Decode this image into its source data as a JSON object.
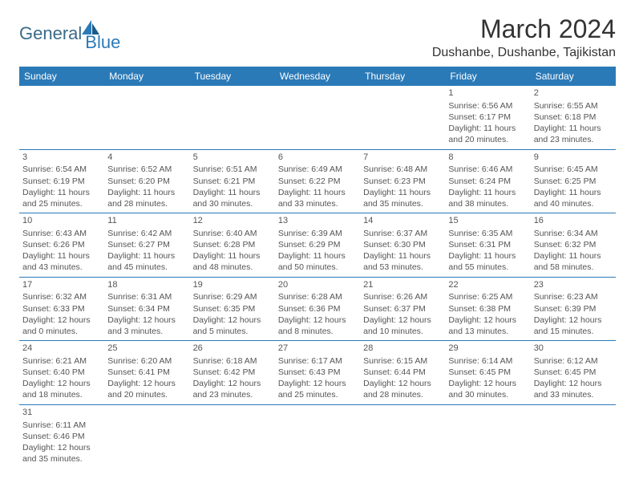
{
  "logo": {
    "text1": "General",
    "text2": "Blue"
  },
  "title": "March 2024",
  "location": "Dushanbe, Dushanbe, Tajikistan",
  "dayHeaders": [
    "Sunday",
    "Monday",
    "Tuesday",
    "Wednesday",
    "Thursday",
    "Friday",
    "Saturday"
  ],
  "colors": {
    "headerBg": "#2b7ab8",
    "headerText": "#ffffff",
    "text": "#555555",
    "titleText": "#333333"
  },
  "weeks": [
    [
      null,
      null,
      null,
      null,
      null,
      {
        "n": "1",
        "sunrise": "Sunrise: 6:56 AM",
        "sunset": "Sunset: 6:17 PM",
        "d1": "Daylight: 11 hours",
        "d2": "and 20 minutes."
      },
      {
        "n": "2",
        "sunrise": "Sunrise: 6:55 AM",
        "sunset": "Sunset: 6:18 PM",
        "d1": "Daylight: 11 hours",
        "d2": "and 23 minutes."
      }
    ],
    [
      {
        "n": "3",
        "sunrise": "Sunrise: 6:54 AM",
        "sunset": "Sunset: 6:19 PM",
        "d1": "Daylight: 11 hours",
        "d2": "and 25 minutes."
      },
      {
        "n": "4",
        "sunrise": "Sunrise: 6:52 AM",
        "sunset": "Sunset: 6:20 PM",
        "d1": "Daylight: 11 hours",
        "d2": "and 28 minutes."
      },
      {
        "n": "5",
        "sunrise": "Sunrise: 6:51 AM",
        "sunset": "Sunset: 6:21 PM",
        "d1": "Daylight: 11 hours",
        "d2": "and 30 minutes."
      },
      {
        "n": "6",
        "sunrise": "Sunrise: 6:49 AM",
        "sunset": "Sunset: 6:22 PM",
        "d1": "Daylight: 11 hours",
        "d2": "and 33 minutes."
      },
      {
        "n": "7",
        "sunrise": "Sunrise: 6:48 AM",
        "sunset": "Sunset: 6:23 PM",
        "d1": "Daylight: 11 hours",
        "d2": "and 35 minutes."
      },
      {
        "n": "8",
        "sunrise": "Sunrise: 6:46 AM",
        "sunset": "Sunset: 6:24 PM",
        "d1": "Daylight: 11 hours",
        "d2": "and 38 minutes."
      },
      {
        "n": "9",
        "sunrise": "Sunrise: 6:45 AM",
        "sunset": "Sunset: 6:25 PM",
        "d1": "Daylight: 11 hours",
        "d2": "and 40 minutes."
      }
    ],
    [
      {
        "n": "10",
        "sunrise": "Sunrise: 6:43 AM",
        "sunset": "Sunset: 6:26 PM",
        "d1": "Daylight: 11 hours",
        "d2": "and 43 minutes."
      },
      {
        "n": "11",
        "sunrise": "Sunrise: 6:42 AM",
        "sunset": "Sunset: 6:27 PM",
        "d1": "Daylight: 11 hours",
        "d2": "and 45 minutes."
      },
      {
        "n": "12",
        "sunrise": "Sunrise: 6:40 AM",
        "sunset": "Sunset: 6:28 PM",
        "d1": "Daylight: 11 hours",
        "d2": "and 48 minutes."
      },
      {
        "n": "13",
        "sunrise": "Sunrise: 6:39 AM",
        "sunset": "Sunset: 6:29 PM",
        "d1": "Daylight: 11 hours",
        "d2": "and 50 minutes."
      },
      {
        "n": "14",
        "sunrise": "Sunrise: 6:37 AM",
        "sunset": "Sunset: 6:30 PM",
        "d1": "Daylight: 11 hours",
        "d2": "and 53 minutes."
      },
      {
        "n": "15",
        "sunrise": "Sunrise: 6:35 AM",
        "sunset": "Sunset: 6:31 PM",
        "d1": "Daylight: 11 hours",
        "d2": "and 55 minutes."
      },
      {
        "n": "16",
        "sunrise": "Sunrise: 6:34 AM",
        "sunset": "Sunset: 6:32 PM",
        "d1": "Daylight: 11 hours",
        "d2": "and 58 minutes."
      }
    ],
    [
      {
        "n": "17",
        "sunrise": "Sunrise: 6:32 AM",
        "sunset": "Sunset: 6:33 PM",
        "d1": "Daylight: 12 hours",
        "d2": "and 0 minutes."
      },
      {
        "n": "18",
        "sunrise": "Sunrise: 6:31 AM",
        "sunset": "Sunset: 6:34 PM",
        "d1": "Daylight: 12 hours",
        "d2": "and 3 minutes."
      },
      {
        "n": "19",
        "sunrise": "Sunrise: 6:29 AM",
        "sunset": "Sunset: 6:35 PM",
        "d1": "Daylight: 12 hours",
        "d2": "and 5 minutes."
      },
      {
        "n": "20",
        "sunrise": "Sunrise: 6:28 AM",
        "sunset": "Sunset: 6:36 PM",
        "d1": "Daylight: 12 hours",
        "d2": "and 8 minutes."
      },
      {
        "n": "21",
        "sunrise": "Sunrise: 6:26 AM",
        "sunset": "Sunset: 6:37 PM",
        "d1": "Daylight: 12 hours",
        "d2": "and 10 minutes."
      },
      {
        "n": "22",
        "sunrise": "Sunrise: 6:25 AM",
        "sunset": "Sunset: 6:38 PM",
        "d1": "Daylight: 12 hours",
        "d2": "and 13 minutes."
      },
      {
        "n": "23",
        "sunrise": "Sunrise: 6:23 AM",
        "sunset": "Sunset: 6:39 PM",
        "d1": "Daylight: 12 hours",
        "d2": "and 15 minutes."
      }
    ],
    [
      {
        "n": "24",
        "sunrise": "Sunrise: 6:21 AM",
        "sunset": "Sunset: 6:40 PM",
        "d1": "Daylight: 12 hours",
        "d2": "and 18 minutes."
      },
      {
        "n": "25",
        "sunrise": "Sunrise: 6:20 AM",
        "sunset": "Sunset: 6:41 PM",
        "d1": "Daylight: 12 hours",
        "d2": "and 20 minutes."
      },
      {
        "n": "26",
        "sunrise": "Sunrise: 6:18 AM",
        "sunset": "Sunset: 6:42 PM",
        "d1": "Daylight: 12 hours",
        "d2": "and 23 minutes."
      },
      {
        "n": "27",
        "sunrise": "Sunrise: 6:17 AM",
        "sunset": "Sunset: 6:43 PM",
        "d1": "Daylight: 12 hours",
        "d2": "and 25 minutes."
      },
      {
        "n": "28",
        "sunrise": "Sunrise: 6:15 AM",
        "sunset": "Sunset: 6:44 PM",
        "d1": "Daylight: 12 hours",
        "d2": "and 28 minutes."
      },
      {
        "n": "29",
        "sunrise": "Sunrise: 6:14 AM",
        "sunset": "Sunset: 6:45 PM",
        "d1": "Daylight: 12 hours",
        "d2": "and 30 minutes."
      },
      {
        "n": "30",
        "sunrise": "Sunrise: 6:12 AM",
        "sunset": "Sunset: 6:45 PM",
        "d1": "Daylight: 12 hours",
        "d2": "and 33 minutes."
      }
    ],
    [
      {
        "n": "31",
        "sunrise": "Sunrise: 6:11 AM",
        "sunset": "Sunset: 6:46 PM",
        "d1": "Daylight: 12 hours",
        "d2": "and 35 minutes."
      },
      null,
      null,
      null,
      null,
      null,
      null
    ]
  ]
}
